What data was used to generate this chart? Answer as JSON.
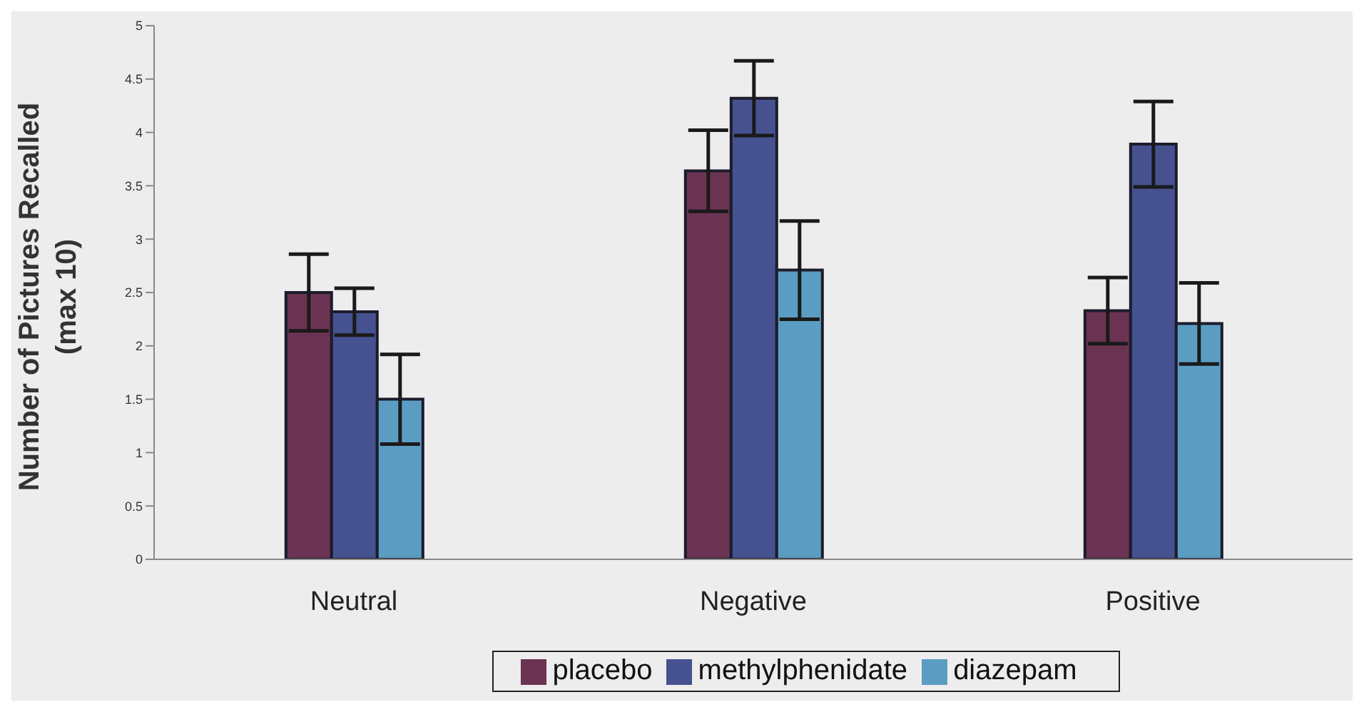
{
  "chart_data": {
    "type": "bar",
    "ylabel": "Number of Pictures Recalled (max 10)",
    "categories": [
      "Neutral",
      "Negative",
      "Positive"
    ],
    "series": [
      {
        "name": "placebo",
        "color": "#6b3352",
        "values": [
          2.5,
          3.64,
          2.33
        ],
        "errors": [
          0.36,
          0.38,
          0.31
        ]
      },
      {
        "name": "methylphenidate",
        "color": "#46528f",
        "values": [
          2.32,
          4.32,
          3.89
        ],
        "errors": [
          0.22,
          0.35,
          0.4
        ]
      },
      {
        "name": "diazepam",
        "color": "#5b9dc2",
        "values": [
          1.5,
          2.71,
          2.21
        ],
        "errors": [
          0.42,
          0.46,
          0.38
        ]
      }
    ],
    "ylim": [
      0,
      5
    ],
    "yticks": [
      0,
      0.5,
      1,
      1.5,
      2,
      2.5,
      3,
      3.5,
      4,
      4.5,
      5
    ],
    "grid": false,
    "legend": "bottom"
  }
}
